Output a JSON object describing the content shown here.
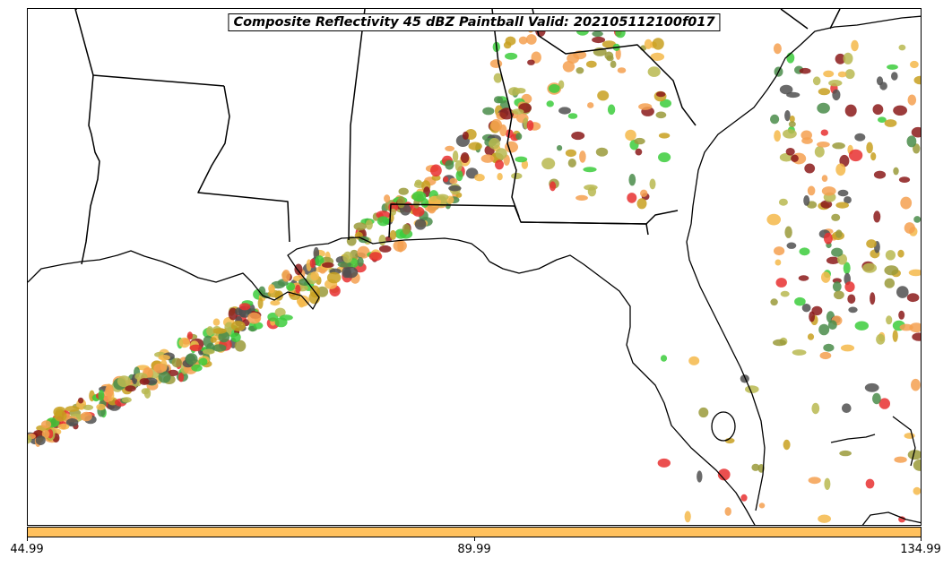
{
  "title": "Composite Reflectivity 45 dBZ Paintball Valid: 202105112100f017",
  "colorbar": {
    "color": "#FFC15E",
    "ticks": [
      "44.99",
      "89.99",
      "134.99"
    ]
  },
  "map": {
    "region": "US Gulf Coast / Southeast",
    "coastline_color": "#000000"
  },
  "paintball_colors": [
    "#E83030",
    "#F4A050",
    "#F5B84A",
    "#3CCC3C",
    "#4A8C4A",
    "#8B1A1A",
    "#9A9A3A",
    "#C8A020",
    "#505050",
    "#B8B850"
  ]
}
